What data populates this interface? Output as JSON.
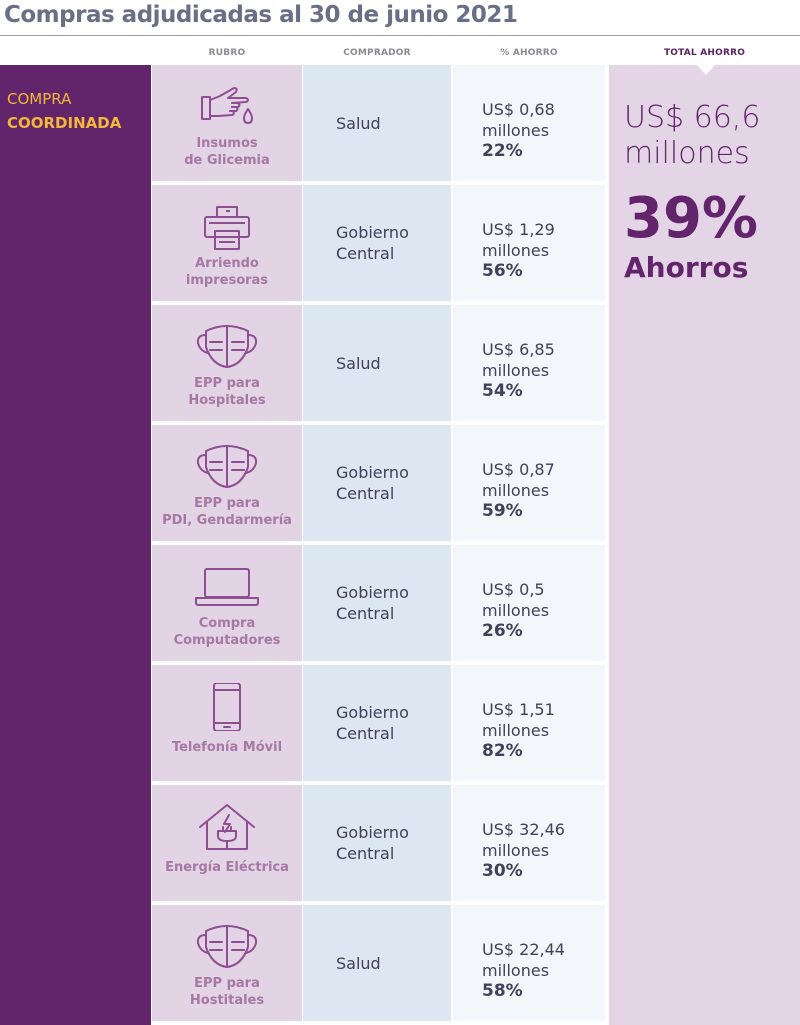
{
  "title": "Compras adjudicadas al 30 de junio 2021",
  "headers": {
    "rubro": "RUBRO",
    "comprador": "COMPRADOR",
    "ahorro": "% AHORRO",
    "total": "TOTAL AHORRO"
  },
  "band": {
    "line1": "COMPRA",
    "line2": "COORDINADA"
  },
  "total": {
    "amount_line1": "US$ 66,6",
    "amount_line2": "millones",
    "percent": "39%",
    "label": "Ahorros"
  },
  "colors": {
    "band": "#62246a",
    "accent": "#f3b73a",
    "rubro_bg": "#e2d3e5",
    "comprador_bg": "#dde7f2",
    "ahorro_bg": "#f3f6fa",
    "total_bg": "#e3d4e6"
  },
  "rows": [
    {
      "icon": "hand-drop-icon",
      "rubro": [
        "Insumos",
        "de Glicemia"
      ],
      "comprador": [
        "Salud"
      ],
      "amount": "US$ 0,68",
      "unit": "millones",
      "percent": "22%"
    },
    {
      "icon": "printer-icon",
      "rubro": [
        "Arriendo",
        "impresoras"
      ],
      "comprador": [
        "Gobierno",
        "Central"
      ],
      "amount": "US$ 1,29",
      "unit": "millones",
      "percent": "56%"
    },
    {
      "icon": "mask-icon",
      "rubro": [
        "EPP para",
        "Hospitales"
      ],
      "comprador": [
        "Salud"
      ],
      "amount": "US$ 6,85",
      "unit": "millones",
      "percent": "54%"
    },
    {
      "icon": "mask-icon",
      "rubro": [
        "EPP para",
        "PDI, Gendarmería"
      ],
      "comprador": [
        "Gobierno",
        "Central"
      ],
      "amount": "US$ 0,87",
      "unit": "millones",
      "percent": "59%"
    },
    {
      "icon": "laptop-icon",
      "rubro": [
        "Compra",
        "Computadores"
      ],
      "comprador": [
        "Gobierno",
        "Central"
      ],
      "amount": "US$ 0,5",
      "unit": "millones",
      "percent": "26%"
    },
    {
      "icon": "mobile-phone-icon",
      "rubro": [
        "Telefonía Móvil"
      ],
      "comprador": [
        "Gobierno",
        "Central"
      ],
      "amount": "US$ 1,51",
      "unit": "millones",
      "percent": "82%"
    },
    {
      "icon": "house-plug-icon",
      "rubro": [
        "Energía Eléctrica"
      ],
      "comprador": [
        "Gobierno",
        "Central"
      ],
      "amount": "US$ 32,46",
      "unit": "millones",
      "percent": "30%"
    },
    {
      "icon": "mask-icon",
      "rubro": [
        "EPP para",
        "Hostitales"
      ],
      "comprador": [
        "Salud"
      ],
      "amount": "US$ 22,44",
      "unit": "millones",
      "percent": "58%"
    }
  ]
}
